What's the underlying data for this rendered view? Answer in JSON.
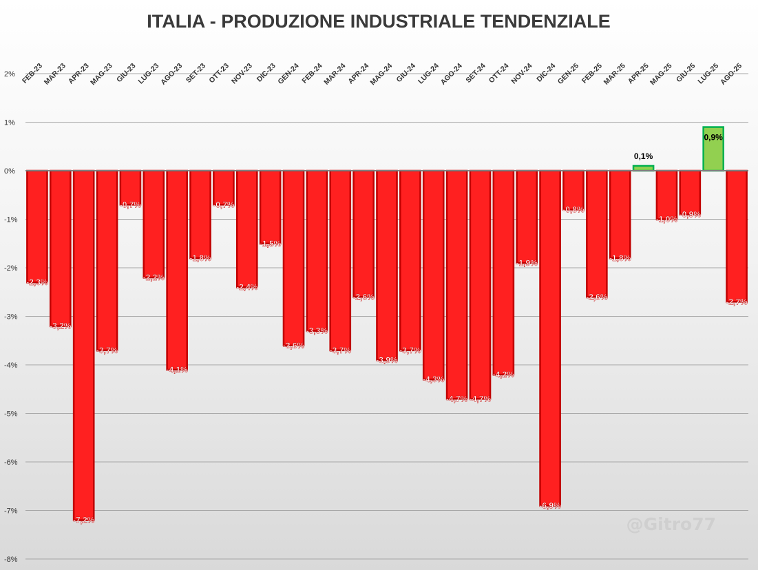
{
  "chart_data": {
    "type": "bar",
    "title": "ITALIA - PRODUZIONE INDUSTRIALE TENDENZIALE",
    "xlabel": "",
    "ylabel": "",
    "ylim": [
      -8,
      2
    ],
    "yticks": [
      2,
      1,
      0,
      -1,
      -2,
      -3,
      -4,
      -5,
      -6,
      -7,
      -8
    ],
    "ytick_labels": [
      "2%",
      "1%",
      "0%",
      "-1%",
      "-2%",
      "-3%",
      "-4%",
      "-5%",
      "-6%",
      "-7%",
      "-8%"
    ],
    "grid": true,
    "x_axis_position": "top",
    "categories": [
      "FEB-23",
      "MAR-23",
      "APR-23",
      "MAG-23",
      "GIU-23",
      "LUG-23",
      "AGO-23",
      "SET-23",
      "OTT-23",
      "NOV-23",
      "DIC-23",
      "GEN-24",
      "FEB-24",
      "MAR-24",
      "APR-24",
      "MAG-24",
      "GIU-24",
      "LUG-24",
      "AGO-24",
      "SET-24",
      "OTT-24",
      "NOV-24",
      "DIC-24",
      "GEN-25",
      "FEB-25",
      "MAR-25",
      "APR-25",
      "MAG-25",
      "GIU-25",
      "LUG-25",
      "AGO-25"
    ],
    "values": [
      -2.3,
      -3.2,
      -7.2,
      -3.7,
      -0.7,
      -2.2,
      -4.1,
      -1.8,
      -0.7,
      -2.4,
      -1.5,
      -3.6,
      -3.3,
      -3.7,
      -2.6,
      -3.9,
      -3.7,
      -4.3,
      -4.7,
      -4.7,
      -4.2,
      -1.9,
      -6.9,
      -0.8,
      -2.6,
      -1.8,
      0.1,
      -1.0,
      -0.9,
      0.9,
      -2.7
    ],
    "value_labels": [
      "-2,3%",
      "-3,2%",
      "-7,2%",
      "-3,7%",
      "-0,7%",
      "-2,2%",
      "-4,1%",
      "-1,8%",
      "-0,7%",
      "-2,4%",
      "-1,5%",
      "-3,6%",
      "-3,3%",
      "-3,7%",
      "-2,6%",
      "-3,9%",
      "-3,7%",
      "-4,3%",
      "-4,7%",
      "-4,7%",
      "-4,2%",
      "-1,9%",
      "-6,9%",
      "-0,8%",
      "-2,6%",
      "-1,8%",
      "0,1%",
      "-1,0%",
      "-0,9%",
      "0,9%",
      "-2,7%"
    ],
    "colors": {
      "negative_fill": "#ff2020",
      "negative_stroke": "#c00000",
      "positive_fill": "#92d050",
      "positive_stroke": "#00b050",
      "grid": "#a6a6a6",
      "axis": "#7f7f7f"
    },
    "watermark": "@Gitro77"
  }
}
